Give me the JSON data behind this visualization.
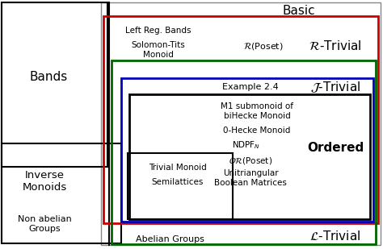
{
  "bg_color": "#ffffff",
  "box_colors": {
    "red": "#cc0000",
    "green": "#006600",
    "blue": "#0000bb",
    "black": "#000000",
    "gray": "#888888"
  },
  "labels": {
    "basic": "Basic",
    "bands": "Bands",
    "inverse": "Inverse\nMonoids",
    "nonabelian": "Non abelian\nGroups",
    "abelian": "Abelian Groups",
    "left_reg": "Left Reg. Bands",
    "solomon": "Solomon-Tits\nMonoid",
    "r_poset": "$\\mathcal{R}$(Poset)",
    "r_trivial": "$\\mathcal{R}$-Trivial",
    "example": "Example 2.4",
    "j_trivial": "$\\mathcal{J}$-Trivial",
    "m1": "M1 submonoid of\nbiHecke Monoid",
    "hecke0": "0-Hecke Monoid",
    "ndpf": "NDPF$_N$",
    "ordered": "Ordered",
    "or_poset": "$\\mathcal{OR}$(Poset)",
    "unitri": "Unitriangular\nBoolean Matrices",
    "trivial": "Trivial Monoid",
    "semi": "Semilattices",
    "l_trivial": "$\\mathcal{L}$-Trivial"
  }
}
